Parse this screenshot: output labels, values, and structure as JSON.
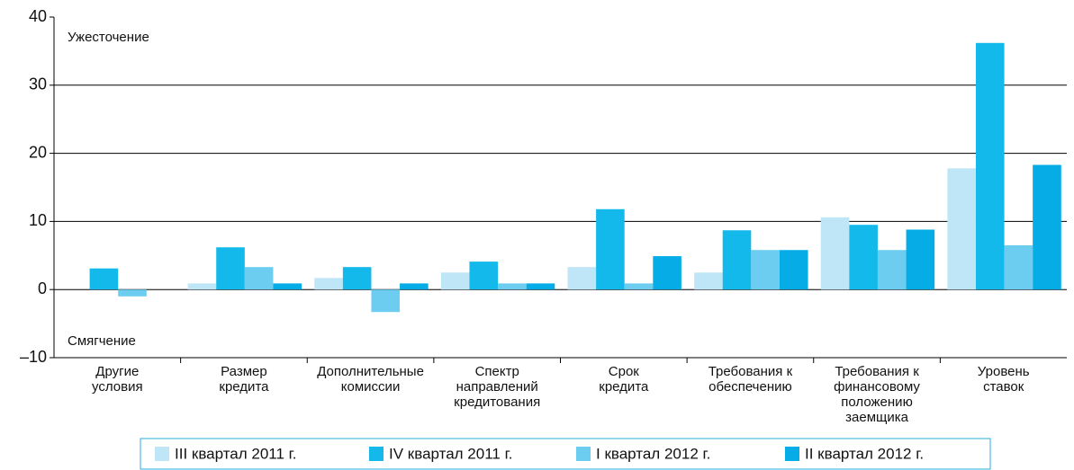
{
  "chart_data": {
    "type": "bar",
    "categories": [
      "Другие\nусловия",
      "Размер\nкредита",
      "Дополнительные\nкомиссии",
      "Спектр\nнаправлений\nкредитования",
      "Срок\nкредита",
      "Требования к\nобеспечению",
      "Требования к\nфинансовому\nположению\nзаемщика",
      "Уровень\nставок"
    ],
    "series": [
      {
        "name": "III квартал 2011 г.",
        "color": "#bfe6f7",
        "values": [
          0,
          0.9,
          1.7,
          2.5,
          3.3,
          2.5,
          10.6,
          17.8
        ]
      },
      {
        "name": "IV квартал 2011 г.",
        "color": "#12b9ea",
        "values": [
          3.1,
          6.2,
          3.3,
          4.1,
          11.8,
          8.7,
          9.5,
          36.2
        ]
      },
      {
        "name": "I квартал 2012 г.",
        "color": "#6ccdf0",
        "values": [
          -1.0,
          3.3,
          -3.3,
          0.9,
          0.9,
          5.8,
          5.8,
          6.5
        ]
      },
      {
        "name": "II квартал 2012 г.",
        "color": "#05ace6",
        "values": [
          0,
          0.9,
          0.9,
          0.9,
          4.9,
          5.8,
          8.8,
          18.3
        ]
      }
    ],
    "annotations": [
      "Ужесточение",
      "Смягчение"
    ],
    "ylim": [
      -10,
      40
    ],
    "yticks": [
      {
        "value": -10,
        "label": "–10"
      },
      0,
      10,
      20,
      30,
      40
    ],
    "grid": true,
    "legend": "bottom"
  }
}
